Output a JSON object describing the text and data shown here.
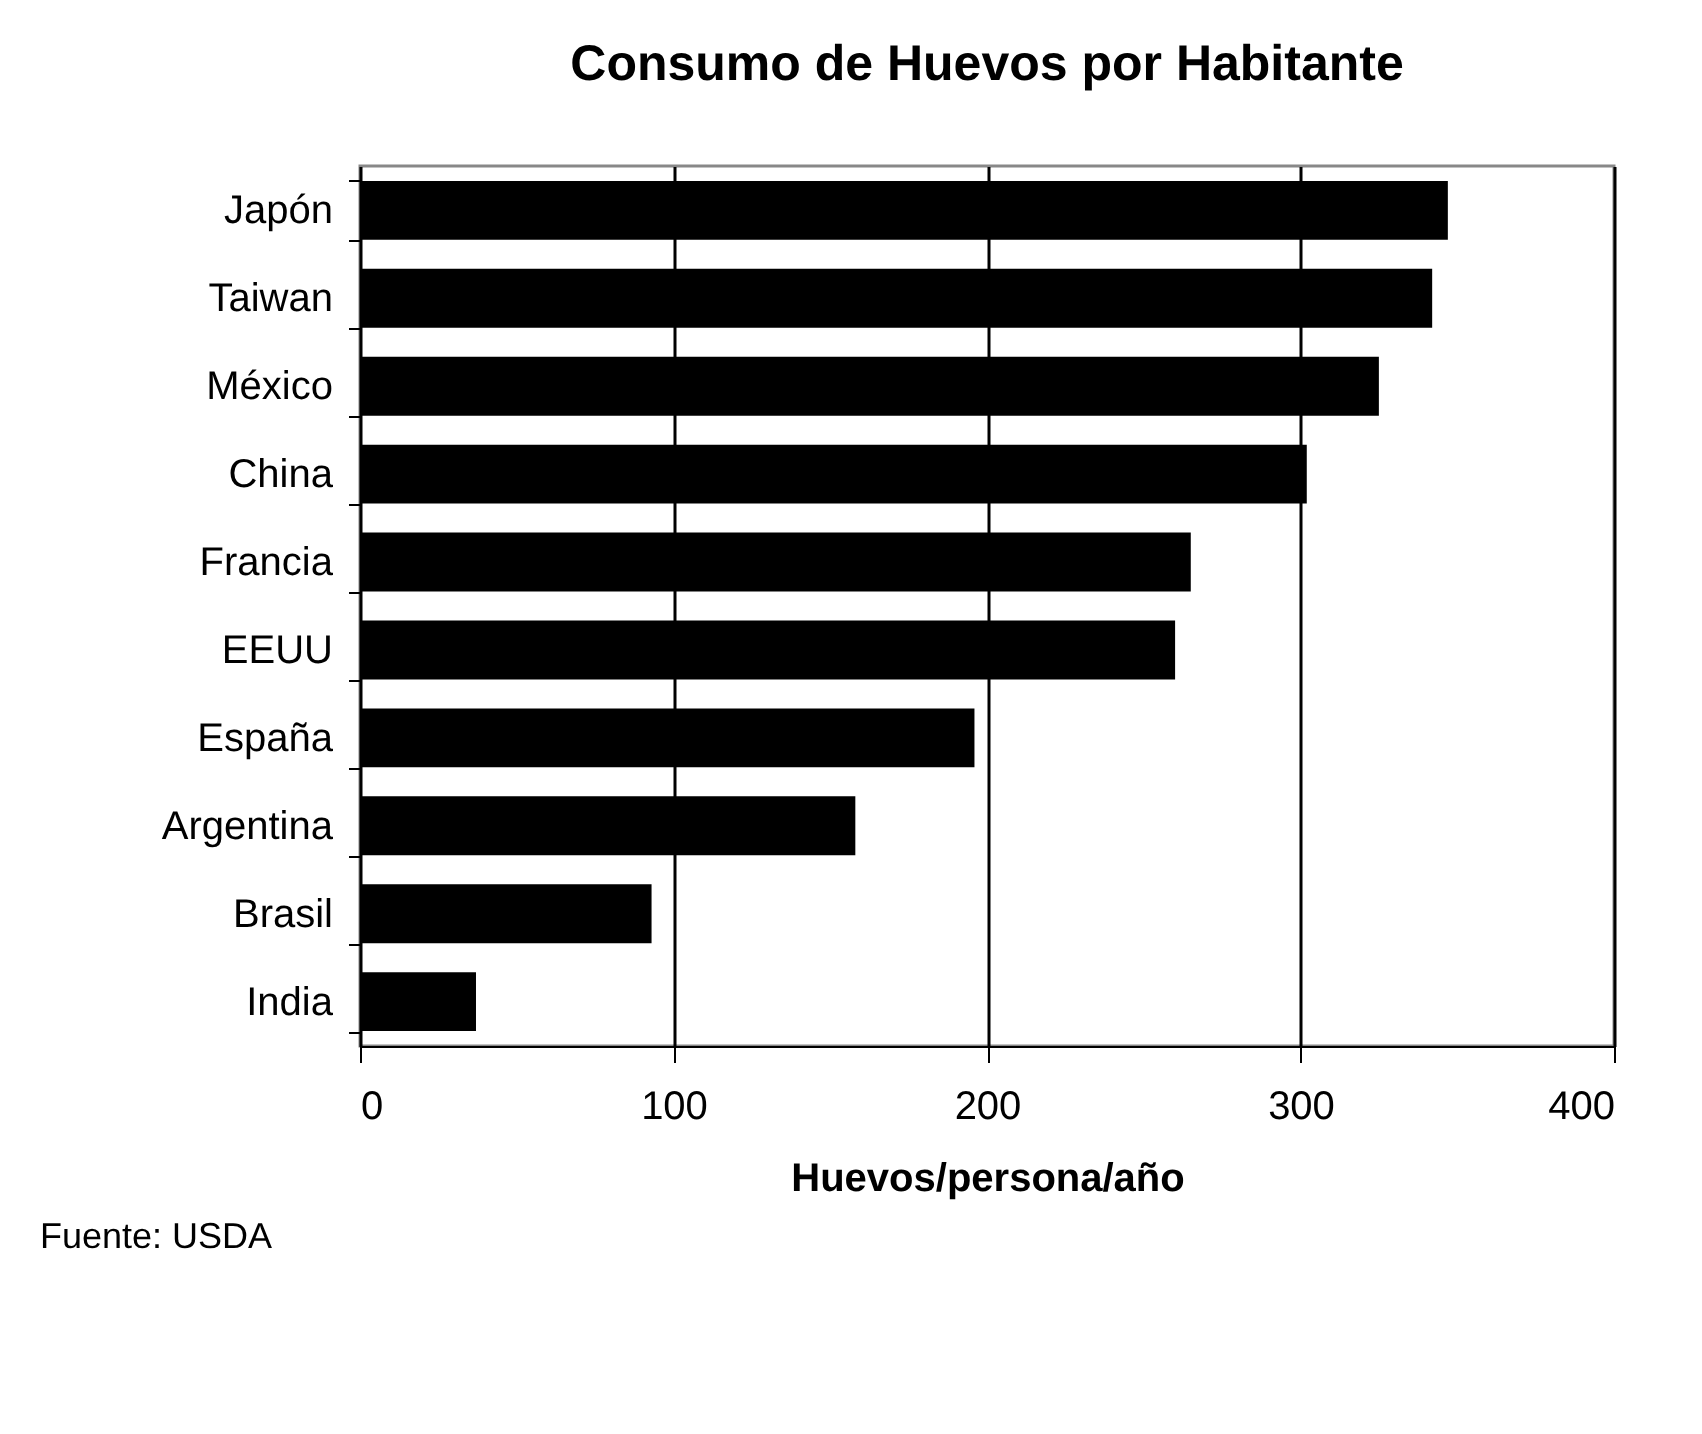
{
  "chart_data": {
    "type": "bar",
    "orientation": "horizontal",
    "title": "Consumo de Huevos por Habitante",
    "xlabel": "Huevos/persona/año",
    "categories": [
      "Japón",
      "Taiwan",
      "México",
      "China",
      "Francia",
      "EEUU",
      "España",
      "Argentina",
      "Brasil",
      "India"
    ],
    "values": [
      347,
      342,
      325,
      302,
      265,
      260,
      196,
      158,
      93,
      37
    ],
    "color": "#000000",
    "xlim": [
      0,
      400
    ],
    "xticks": [
      0,
      100,
      200,
      300,
      400
    ],
    "grid": "x",
    "annotations": [
      "Fuente: USDA"
    ]
  }
}
